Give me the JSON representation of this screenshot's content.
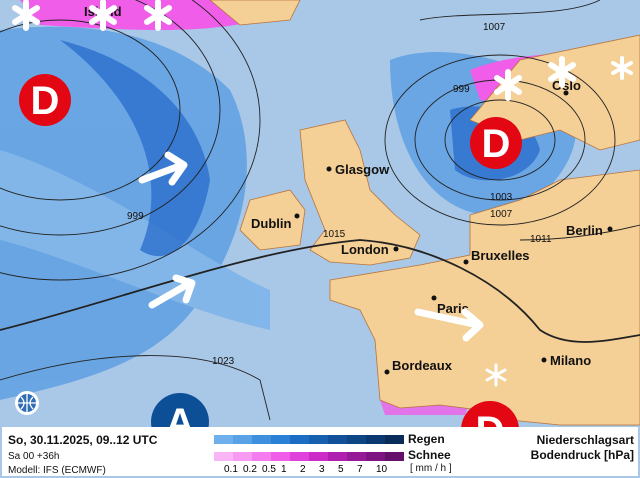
{
  "map": {
    "region_label": "Island",
    "cities": [
      "Glasgow",
      "Dublin",
      "London",
      "Bruxelles",
      "Paris",
      "Bordeaux",
      "Milano",
      "Berlin",
      "Oslo"
    ],
    "isobar_labels": [
      "1007",
      "999",
      "1003",
      "1007",
      "1011",
      "1015",
      "1023",
      "999"
    ],
    "low_symbol": "D",
    "high_symbol": "A",
    "colors": {
      "sea": "#a9c8e8",
      "land": "#f4cf96",
      "low": "#e30613",
      "high": "#0d4f96"
    }
  },
  "info": {
    "date": "So, 30.11.2025, 09..12 UTC",
    "run": "Sa 00 +36h",
    "model": "Modell: IFS (ECMWF)"
  },
  "legend": {
    "rain_label": "Regen",
    "snow_label": "Schnee",
    "unit": "[ mm / h ]",
    "ticks": [
      "0.1",
      "0.2",
      "0.5",
      "1",
      "2",
      "3",
      "5",
      "7",
      "10"
    ],
    "rain_colors": [
      "#6fb0ec",
      "#5aa2e6",
      "#3f8fdf",
      "#2a7fd6",
      "#1c6cc4",
      "#1760b0",
      "#12519a",
      "#0e4585",
      "#0b3870",
      "#0a2c58"
    ],
    "snow_colors": [
      "#f9b5f5",
      "#f79af2",
      "#f57cef",
      "#f05ee9",
      "#e041dc",
      "#cc2bc8",
      "#b01fb0",
      "#961a98",
      "#7d1482",
      "#65106b"
    ],
    "title1": "Niederschlagsart",
    "title2": "Bodendruck [hPa]"
  }
}
